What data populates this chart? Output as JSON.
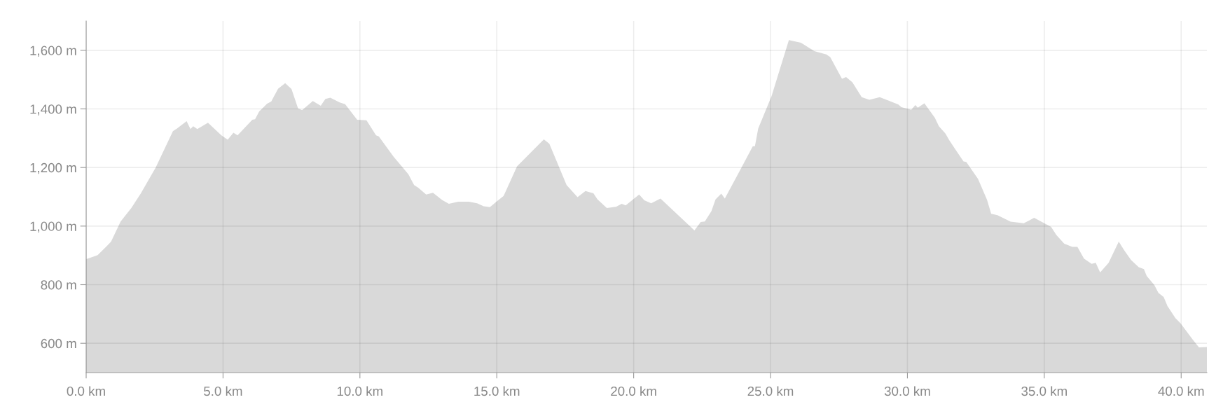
{
  "chart_data": {
    "type": "area",
    "x": [
      0,
      0.28,
      0.42,
      0.77,
      0.91,
      1.26,
      1.65,
      2.0,
      2.54,
      3.17,
      3.32,
      3.67,
      3.81,
      3.91,
      4.06,
      4.45,
      4.94,
      5.17,
      5.38,
      5.53,
      6.07,
      6.17,
      6.32,
      6.61,
      6.76,
      7.01,
      7.27,
      7.5,
      7.74,
      7.89,
      8.28,
      8.57,
      8.74,
      8.92,
      9.26,
      9.46,
      9.9,
      10.24,
      10.59,
      10.69,
      11.23,
      11.77,
      11.98,
      12.13,
      12.42,
      12.67,
      13.0,
      13.25,
      13.59,
      13.98,
      14.28,
      14.52,
      14.75,
      15.01,
      15.25,
      15.74,
      16.72,
      16.92,
      17.55,
      17.95,
      18.24,
      18.53,
      18.68,
      19.02,
      19.36,
      19.56,
      19.71,
      20.2,
      20.39,
      20.64,
      20.98,
      22.22,
      22.45,
      22.6,
      22.84,
      22.99,
      23.2,
      23.33,
      23.86,
      24.35,
      24.43,
      24.55,
      25.04,
      25.28,
      25.67,
      26.11,
      26.6,
      27.04,
      27.18,
      27.61,
      27.76,
      27.99,
      28.33,
      28.61,
      28.99,
      29.67,
      29.78,
      30.14,
      30.29,
      30.38,
      30.62,
      31.0,
      31.15,
      31.39,
      31.53,
      31.72,
      32.05,
      32.15,
      32.58,
      32.91,
      33.06,
      33.29,
      33.77,
      34.25,
      34.44,
      34.63,
      35.25,
      35.44,
      35.73,
      36.02,
      36.21,
      36.45,
      36.59,
      36.73,
      36.88,
      37.04,
      37.35,
      37.72,
      37.93,
      38.17,
      38.45,
      38.64,
      38.74,
      39.02,
      39.17,
      39.36,
      39.5,
      39.79,
      39.98,
      40.41,
      40.65,
      40.94
    ],
    "series": [
      {
        "color": "#d9d9d9",
        "values": [
          887,
          896,
          901,
          933,
          947,
          1016,
          1062,
          1112,
          1200,
          1324,
          1333,
          1358,
          1331,
          1341,
          1331,
          1353,
          1310,
          1295,
          1319,
          1310,
          1363,
          1365,
          1391,
          1418,
          1425,
          1469,
          1488,
          1468,
          1402,
          1396,
          1427,
          1411,
          1434,
          1438,
          1422,
          1416,
          1363,
          1361,
          1310,
          1306,
          1237,
          1177,
          1140,
          1131,
          1108,
          1114,
          1089,
          1076,
          1083,
          1083,
          1078,
          1068,
          1065,
          1085,
          1103,
          1204,
          1296,
          1281,
          1140,
          1099,
          1120,
          1112,
          1091,
          1062,
          1066,
          1076,
          1071,
          1108,
          1088,
          1078,
          1094,
          985,
          1014,
          1016,
          1051,
          1091,
          1111,
          1094,
          1186,
          1272,
          1273,
          1333,
          1444,
          1517,
          1635,
          1626,
          1597,
          1586,
          1577,
          1503,
          1509,
          1491,
          1440,
          1431,
          1440,
          1415,
          1406,
          1397,
          1413,
          1404,
          1419,
          1370,
          1341,
          1316,
          1293,
          1266,
          1221,
          1219,
          1161,
          1089,
          1042,
          1037,
          1015,
          1010,
          1019,
          1028,
          997,
          970,
          940,
          929,
          929,
          889,
          880,
          871,
          875,
          842,
          875,
          947,
          916,
          884,
          860,
          853,
          830,
          799,
          772,
          758,
          727,
          686,
          668,
          614,
          586,
          587
        ]
      }
    ],
    "xlim": [
      0,
      40.94
    ],
    "xticks": [
      {
        "value": 0,
        "label": "0.0 km"
      },
      {
        "value": 5,
        "label": "5.0 km"
      },
      {
        "value": 10,
        "label": "10.0 km"
      },
      {
        "value": 15,
        "label": "15.0 km"
      },
      {
        "value": 20,
        "label": "20.0 km"
      },
      {
        "value": 25,
        "label": "25.0 km"
      },
      {
        "value": 30,
        "label": "30.0 km"
      },
      {
        "value": 35,
        "label": "35.0 km"
      },
      {
        "value": 40,
        "label": "40.0 km"
      }
    ],
    "ylim": [
      500,
      1700
    ],
    "yticks": [
      {
        "value": 600,
        "label": "600 m"
      },
      {
        "value": 800,
        "label": "800 m"
      },
      {
        "value": 1000,
        "label": "1,000 m"
      },
      {
        "value": 1200,
        "label": "1,200 m"
      },
      {
        "value": 1400,
        "label": "1,400 m"
      },
      {
        "value": 1600,
        "label": "1,600 m"
      }
    ],
    "grid": true,
    "legend": false
  }
}
